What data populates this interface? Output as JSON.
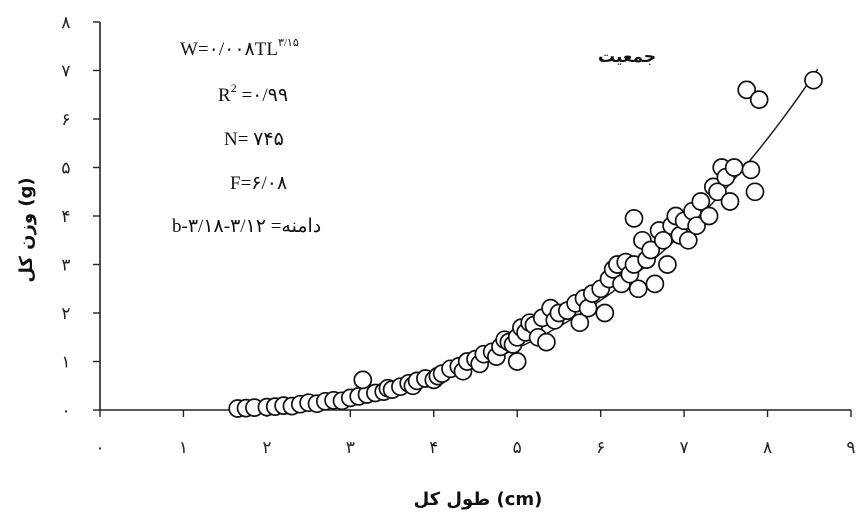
{
  "chart_data": {
    "type": "scatter",
    "xlabel": "طول کل (cm)",
    "ylabel": "وزن کل (g)",
    "xlim": [
      0,
      9
    ],
    "ylim": [
      0,
      8
    ],
    "x_tick_labels": [
      "۰",
      "۱",
      "۲",
      "۳",
      "۴",
      "۵",
      "۶",
      "۷",
      "۸",
      "۹"
    ],
    "y_tick_labels": [
      "۰",
      "۱",
      "۲",
      "۳",
      "۴",
      "۵",
      "۶",
      "۷",
      "۸"
    ],
    "grid": false,
    "series_title": "جمعیت",
    "annotations": {
      "equation": "W=۰/۰۰۸TL",
      "equation_exponent": "۳/۱۵",
      "r2_label": "R",
      "r2_sup": "2",
      "r2_value": " =۰/۹۹",
      "n": "N= ۷۴۵",
      "f": "F=۶/۰۸",
      "b": "b-دامنه= ۳/۱۲-۳/۱۸"
    },
    "fit_line": {
      "a": 0.008,
      "b": 3.15,
      "x_range": [
        1.7,
        8.6
      ]
    },
    "points": [
      [
        1.65,
        0.03
      ],
      [
        1.75,
        0.04
      ],
      [
        1.85,
        0.05
      ],
      [
        2.0,
        0.06
      ],
      [
        2.1,
        0.07
      ],
      [
        2.2,
        0.09
      ],
      [
        2.3,
        0.08
      ],
      [
        2.4,
        0.12
      ],
      [
        2.5,
        0.15
      ],
      [
        2.6,
        0.13
      ],
      [
        2.7,
        0.18
      ],
      [
        2.8,
        0.2
      ],
      [
        2.9,
        0.19
      ],
      [
        3.0,
        0.25
      ],
      [
        3.1,
        0.28
      ],
      [
        3.2,
        0.32
      ],
      [
        3.15,
        0.62
      ],
      [
        3.3,
        0.35
      ],
      [
        3.4,
        0.38
      ],
      [
        3.45,
        0.45
      ],
      [
        3.5,
        0.42
      ],
      [
        3.6,
        0.48
      ],
      [
        3.7,
        0.55
      ],
      [
        3.75,
        0.5
      ],
      [
        3.8,
        0.6
      ],
      [
        3.9,
        0.65
      ],
      [
        4.0,
        0.62
      ],
      [
        4.05,
        0.7
      ],
      [
        4.1,
        0.75
      ],
      [
        4.2,
        0.85
      ],
      [
        4.3,
        0.9
      ],
      [
        4.35,
        0.8
      ],
      [
        4.4,
        1.0
      ],
      [
        4.5,
        1.05
      ],
      [
        4.55,
        0.95
      ],
      [
        4.6,
        1.15
      ],
      [
        4.7,
        1.2
      ],
      [
        4.75,
        1.1
      ],
      [
        4.8,
        1.3
      ],
      [
        4.85,
        1.45
      ],
      [
        4.9,
        1.4
      ],
      [
        4.95,
        1.35
      ],
      [
        5.0,
        1.5
      ],
      [
        5.05,
        1.7
      ],
      [
        5.1,
        1.6
      ],
      [
        5.15,
        1.8
      ],
      [
        5.2,
        1.75
      ],
      [
        5.25,
        1.5
      ],
      [
        5.3,
        1.9
      ],
      [
        5.0,
        1.0
      ],
      [
        5.35,
        1.4
      ],
      [
        5.4,
        2.1
      ],
      [
        5.45,
        1.85
      ],
      [
        5.5,
        2.0
      ],
      [
        5.6,
        2.05
      ],
      [
        5.7,
        2.2
      ],
      [
        5.75,
        1.8
      ],
      [
        5.8,
        2.3
      ],
      [
        5.85,
        2.1
      ],
      [
        5.9,
        2.4
      ],
      [
        6.0,
        2.5
      ],
      [
        6.05,
        2.0
      ],
      [
        6.1,
        2.7
      ],
      [
        6.15,
        2.9
      ],
      [
        6.2,
        3.0
      ],
      [
        6.25,
        2.6
      ],
      [
        6.3,
        3.05
      ],
      [
        6.35,
        2.8
      ],
      [
        6.4,
        3.0
      ],
      [
        6.45,
        2.5
      ],
      [
        6.5,
        3.5
      ],
      [
        6.55,
        3.1
      ],
      [
        6.6,
        3.3
      ],
      [
        6.65,
        2.6
      ],
      [
        6.7,
        3.7
      ],
      [
        6.75,
        3.5
      ],
      [
        6.8,
        3.0
      ],
      [
        6.85,
        3.8
      ],
      [
        6.9,
        4.0
      ],
      [
        6.95,
        3.6
      ],
      [
        7.0,
        3.9
      ],
      [
        7.05,
        3.5
      ],
      [
        7.1,
        4.1
      ],
      [
        7.15,
        3.8
      ],
      [
        7.2,
        4.3
      ],
      [
        7.3,
        4.0
      ],
      [
        7.35,
        4.6
      ],
      [
        7.4,
        4.5
      ],
      [
        7.45,
        5.0
      ],
      [
        7.5,
        4.8
      ],
      [
        7.55,
        4.3
      ],
      [
        7.6,
        5.0
      ],
      [
        7.75,
        6.6
      ],
      [
        7.8,
        4.95
      ],
      [
        7.85,
        4.5
      ],
      [
        7.9,
        6.4
      ],
      [
        6.4,
        3.95
      ],
      [
        8.55,
        6.8
      ]
    ]
  }
}
